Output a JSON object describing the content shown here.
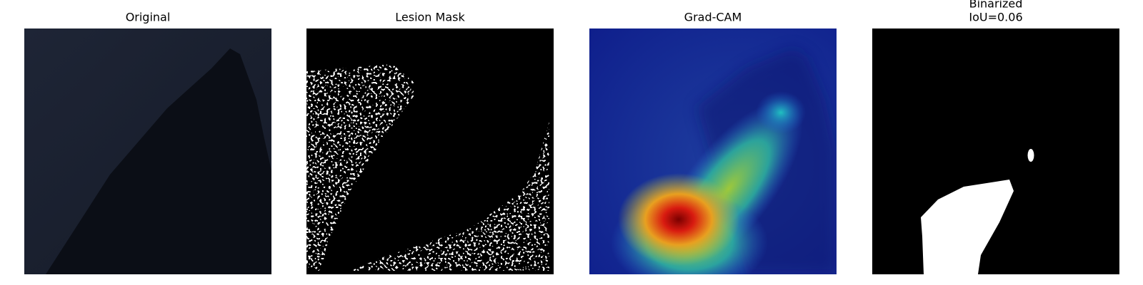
{
  "panels": [
    {
      "title": "Original"
    },
    {
      "title": "Lesion Mask"
    },
    {
      "title": "Grad-CAM"
    },
    {
      "title_lines": [
        "Binarized",
        "IoU=0.06"
      ]
    }
  ]
}
